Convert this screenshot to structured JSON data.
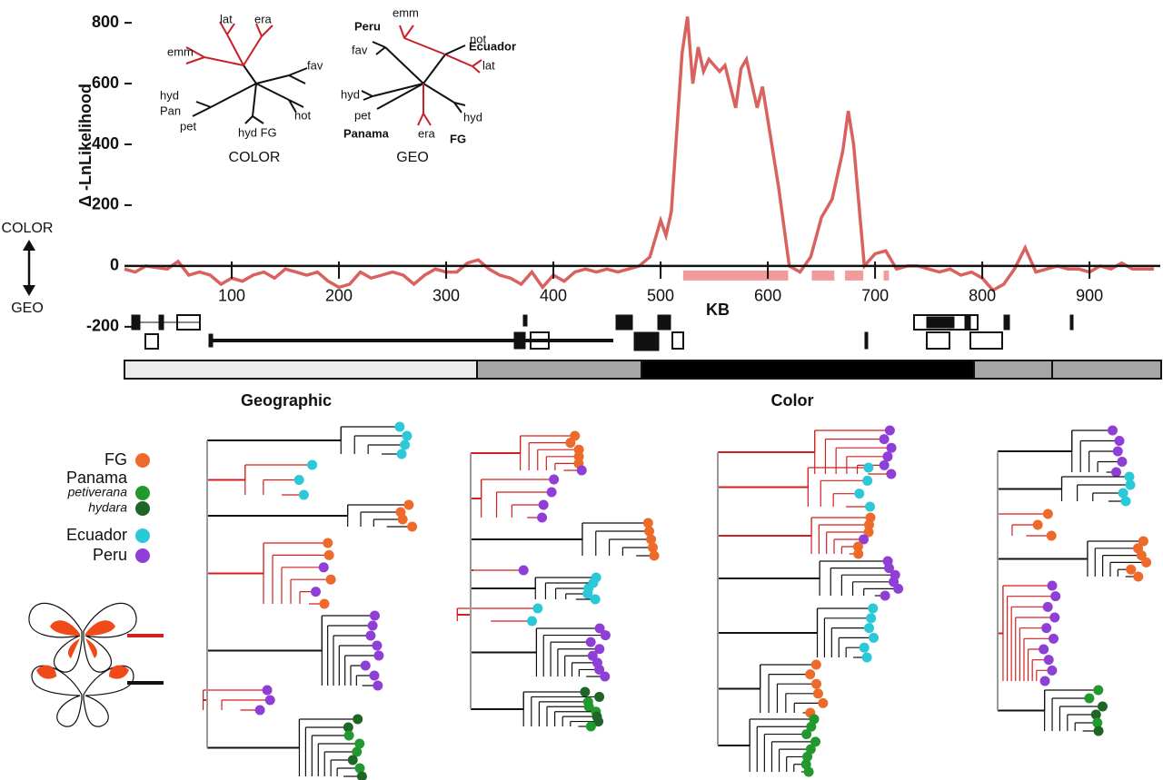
{
  "chart_data": {
    "type": "line",
    "y_label": "Δ -LnLikelihood",
    "x_label": "KB",
    "color": "#d9625e",
    "x": [
      0,
      10,
      20,
      30,
      40,
      50,
      60,
      70,
      80,
      90,
      100,
      110,
      120,
      130,
      140,
      150,
      160,
      170,
      180,
      190,
      200,
      210,
      220,
      230,
      240,
      250,
      260,
      270,
      280,
      290,
      300,
      310,
      320,
      330,
      340,
      350,
      360,
      370,
      380,
      390,
      400,
      410,
      420,
      430,
      440,
      450,
      460,
      470,
      480,
      490,
      500,
      505,
      510,
      520,
      525,
      530,
      535,
      540,
      545,
      550,
      555,
      560,
      570,
      575,
      580,
      585,
      590,
      595,
      600,
      610,
      620,
      630,
      640,
      650,
      660,
      670,
      675,
      680,
      690,
      700,
      710,
      720,
      730,
      740,
      750,
      760,
      770,
      780,
      790,
      800,
      810,
      820,
      830,
      840,
      850,
      860,
      870,
      880,
      890,
      900,
      910,
      920,
      930,
      940,
      950,
      960
    ],
    "values": [
      -10,
      -20,
      0,
      -5,
      -10,
      15,
      -30,
      -20,
      -30,
      -60,
      -40,
      -50,
      -30,
      -20,
      -40,
      -10,
      -20,
      -30,
      -20,
      -50,
      -70,
      -60,
      -20,
      -40,
      -30,
      -20,
      -30,
      -60,
      -30,
      -10,
      -20,
      -20,
      10,
      20,
      -10,
      -30,
      -40,
      -60,
      -20,
      -70,
      -30,
      -50,
      -20,
      -10,
      -20,
      -10,
      -20,
      -10,
      0,
      30,
      150,
      100,
      180,
      700,
      820,
      600,
      720,
      640,
      680,
      660,
      640,
      660,
      520,
      650,
      680,
      600,
      520,
      590,
      480,
      260,
      0,
      -20,
      30,
      160,
      220,
      380,
      510,
      400,
      0,
      40,
      50,
      -10,
      0,
      0,
      -10,
      -20,
      -10,
      -30,
      -20,
      -40,
      -80,
      -60,
      -10,
      60,
      -20,
      -10,
      0,
      -10,
      -10,
      -20,
      0,
      -10,
      10,
      -10,
      -10,
      -10
    ],
    "regions": [
      [
        521,
        619
      ],
      [
        641,
        662
      ],
      [
        672,
        689
      ],
      [
        708,
        713
      ]
    ],
    "xlim": [
      0,
      966
    ],
    "ylim": [
      -290,
      875
    ],
    "xticks": [
      100,
      200,
      300,
      400,
      500,
      600,
      700,
      800,
      900
    ],
    "yticks": [
      -200,
      0,
      200,
      400,
      600,
      800
    ],
    "side_labels": [
      "COLOR",
      "GEO"
    ]
  },
  "insets": [
    {
      "title": "COLOR",
      "labels": [
        "lat",
        "era",
        "emm",
        "fav",
        "hyd",
        "Pan",
        "pet",
        "hyd FG",
        "not"
      ]
    },
    {
      "title": "GEO",
      "labels": [
        "Peru",
        "emm",
        "not",
        "Ecuador",
        "fav",
        "lat",
        "hyd",
        "pet",
        "hyd",
        "Panama",
        "era",
        "FG"
      ]
    }
  ],
  "trees": {
    "titles": [
      "Geographic",
      "Color"
    ]
  },
  "legend": [
    {
      "label": "FG",
      "color": "#ee6a2b"
    },
    {
      "label": "Panama"
    },
    {
      "label": "petiverana",
      "color": "#22992e"
    },
    {
      "label": "hydara",
      "color": "#1f6626"
    },
    {
      "label": "Ecuador",
      "color": "#2bc8d8"
    },
    {
      "label": "Peru",
      "color": "#8f3fd6"
    }
  ]
}
